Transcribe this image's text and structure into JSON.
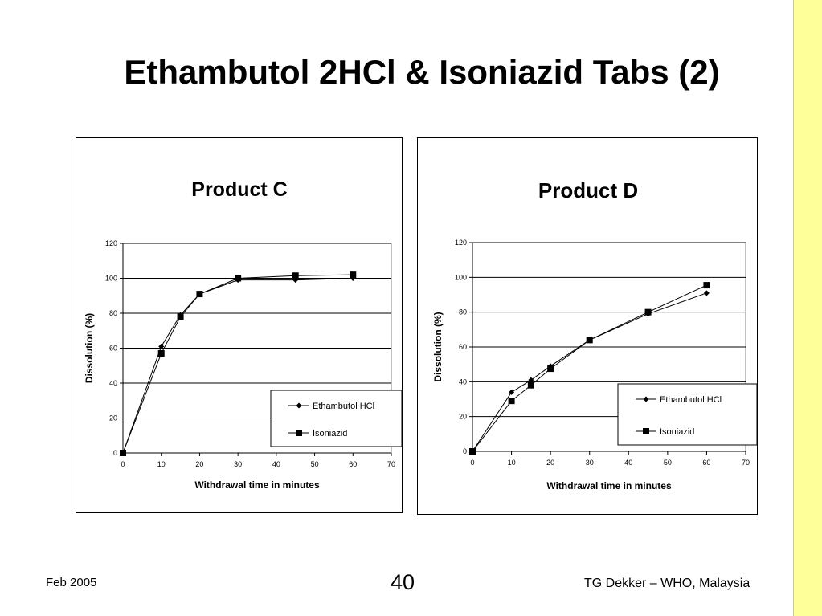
{
  "slide": {
    "title": "Ethambutol 2HCl & Isoniazid Tabs (2)",
    "footer_left": "Feb 2005",
    "page_number": "40",
    "footer_right": "TG Dekker – WHO, Malaysia",
    "side_bar_color": "#ffff99"
  },
  "chart_data": [
    {
      "type": "line",
      "title": "Product C",
      "xlabel": "Withdrawal time in minutes",
      "ylabel": "Dissolution (%)",
      "xlim": [
        0,
        70
      ],
      "ylim": [
        0,
        120
      ],
      "xticks": [
        0,
        10,
        20,
        30,
        40,
        50,
        60,
        70
      ],
      "yticks": [
        0,
        20,
        40,
        60,
        80,
        100,
        120
      ],
      "grid": "horizontal",
      "legend": "bottom-right",
      "series": [
        {
          "name": "Ethambutol HCl",
          "marker": "diamond",
          "x": [
            0,
            10,
            15,
            20,
            30,
            45,
            60
          ],
          "y": [
            0,
            61,
            79,
            91,
            99,
            99,
            100
          ]
        },
        {
          "name": "Isoniazid",
          "marker": "square",
          "x": [
            0,
            10,
            15,
            20,
            30,
            45,
            60
          ],
          "y": [
            0,
            57,
            78,
            91,
            100,
            101.5,
            102
          ]
        }
      ]
    },
    {
      "type": "line",
      "title": "Product D",
      "xlabel": "Withdrawal time in minutes",
      "ylabel": "Dissolution (%)",
      "xlim": [
        0,
        70
      ],
      "ylim": [
        0,
        120
      ],
      "xticks": [
        0,
        10,
        20,
        30,
        40,
        50,
        60,
        70
      ],
      "yticks": [
        0,
        20,
        40,
        60,
        80,
        100,
        120
      ],
      "grid": "horizontal",
      "legend": "right",
      "series": [
        {
          "name": "Ethambutol HCl",
          "marker": "diamond",
          "x": [
            0,
            10,
            15,
            20,
            30,
            45,
            60
          ],
          "y": [
            0,
            34,
            41,
            49,
            64,
            79,
            91
          ]
        },
        {
          "name": "Isoniazid",
          "marker": "square",
          "x": [
            0,
            10,
            15,
            20,
            30,
            45,
            60
          ],
          "y": [
            0,
            29,
            38,
            47.5,
            64,
            80,
            95.5
          ]
        }
      ]
    }
  ]
}
